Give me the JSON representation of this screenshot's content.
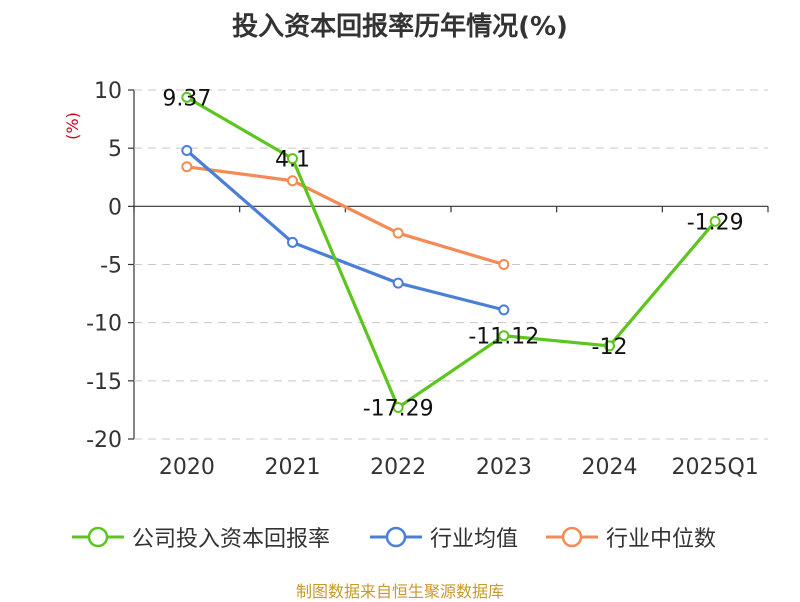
{
  "chart_data": {
    "type": "line",
    "title": "投入资本回报率历年情况(%)",
    "ylabel": "(%)",
    "xlabel": "",
    "ylim": [
      -20,
      10
    ],
    "yticks": [
      10,
      5,
      0,
      -5,
      -10,
      -15,
      -20
    ],
    "categories": [
      "2020",
      "2021",
      "2022",
      "2023",
      "2024",
      "2025Q1"
    ],
    "series": [
      {
        "name": "公司投入资本回报率",
        "color": "#5cc51e",
        "values": [
          9.37,
          4.1,
          -17.29,
          -11.12,
          -12,
          -1.29
        ],
        "labels": [
          "9.37",
          "4.1",
          "-17.29",
          "-11.12",
          "-12",
          "-1.29"
        ]
      },
      {
        "name": "行业均值",
        "color": "#4a7fd8",
        "values": [
          4.8,
          -3.1,
          -6.6,
          -8.9,
          null,
          null
        ]
      },
      {
        "name": "行业中位数",
        "color": "#f48a54",
        "values": [
          3.4,
          2.2,
          -2.3,
          -5.0,
          null,
          null
        ]
      }
    ],
    "legend_position": "bottom",
    "grid": true
  },
  "source": "制图数据来自恒生聚源数据库"
}
